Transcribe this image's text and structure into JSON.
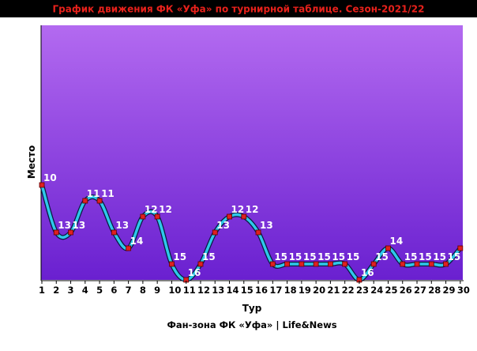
{
  "chart_data": {
    "type": "line",
    "title": "График движения ФК «Уфа» по турнирной таблице. Сезон-2021/22",
    "xlabel": "Тур",
    "ylabel": "Место",
    "footer": "Фан-зона ФК «Уфа» | Life&News",
    "categories": [
      "1",
      "2",
      "3",
      "4",
      "5",
      "6",
      "7",
      "8",
      "9",
      "10",
      "11",
      "12",
      "13",
      "14",
      "15",
      "16",
      "17",
      "18",
      "19",
      "20",
      "21",
      "22",
      "23",
      "24",
      "25",
      "26",
      "27",
      "28",
      "29",
      "30"
    ],
    "series": [
      {
        "values": [
          10,
          13,
          13,
          11,
          11,
          13,
          14,
          12,
          12,
          15,
          16,
          15,
          13,
          12,
          12,
          13,
          15,
          15,
          15,
          15,
          15,
          15,
          16,
          15,
          14,
          15,
          15,
          15,
          15,
          14
        ]
      }
    ],
    "ylim": [
      16,
      10
    ],
    "y_inverted": true,
    "grid": false,
    "colors": {
      "background_top": "#b36af0",
      "background_bottom": "#6a20d0",
      "line": "#2ec8ea",
      "line_outline": "#0a1a40",
      "marker": "#e02020",
      "marker_border": "#600000",
      "title_bar": "#000000",
      "title_text": "#e8211b"
    }
  }
}
